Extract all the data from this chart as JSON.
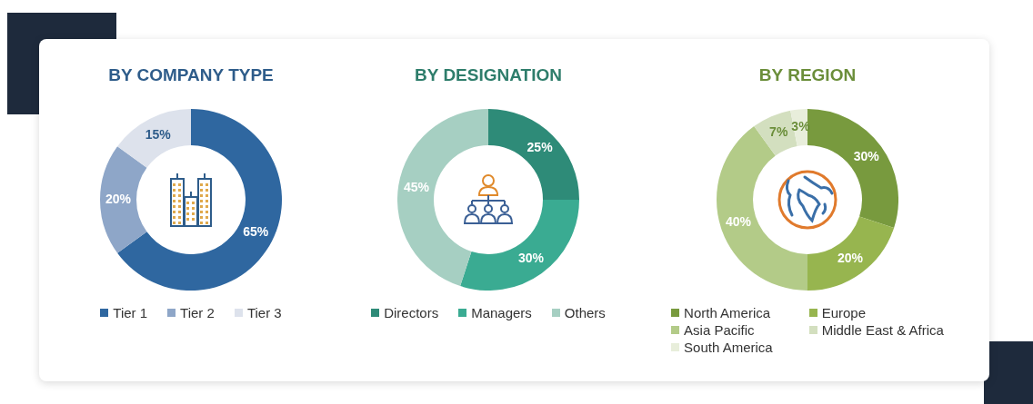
{
  "chart_data": [
    {
      "type": "donut",
      "title": "BY COMPANY TYPE",
      "categories": [
        "Tier 1",
        "Tier 2",
        "Tier 3"
      ],
      "values": [
        65,
        20,
        15
      ],
      "colors": [
        "#2f67a0",
        "#8ea6c8",
        "#dde2ec"
      ],
      "value_labels": [
        "65%",
        "20%",
        "15%"
      ],
      "legend": "bottom"
    },
    {
      "type": "donut",
      "title": "BY DESIGNATION",
      "categories": [
        "Directors",
        "Managers",
        "Others"
      ],
      "values": [
        25,
        30,
        45
      ],
      "colors": [
        "#2e8b78",
        "#3aab92",
        "#a6cfc2"
      ],
      "value_labels": [
        "25%",
        "30%",
        "45%"
      ],
      "legend": "bottom"
    },
    {
      "type": "donut",
      "title": "BY REGION",
      "categories": [
        "North America",
        "Europe",
        "Asia Pacific",
        "Middle East & Africa",
        "South America"
      ],
      "values": [
        30,
        20,
        40,
        7,
        3
      ],
      "colors": [
        "#789a3e",
        "#97b54f",
        "#b3cb88",
        "#d3dfbf",
        "#e8eedb"
      ],
      "value_labels": [
        "30%",
        "20%",
        "40%",
        "7%",
        "3%"
      ],
      "legend": "bottom"
    }
  ]
}
